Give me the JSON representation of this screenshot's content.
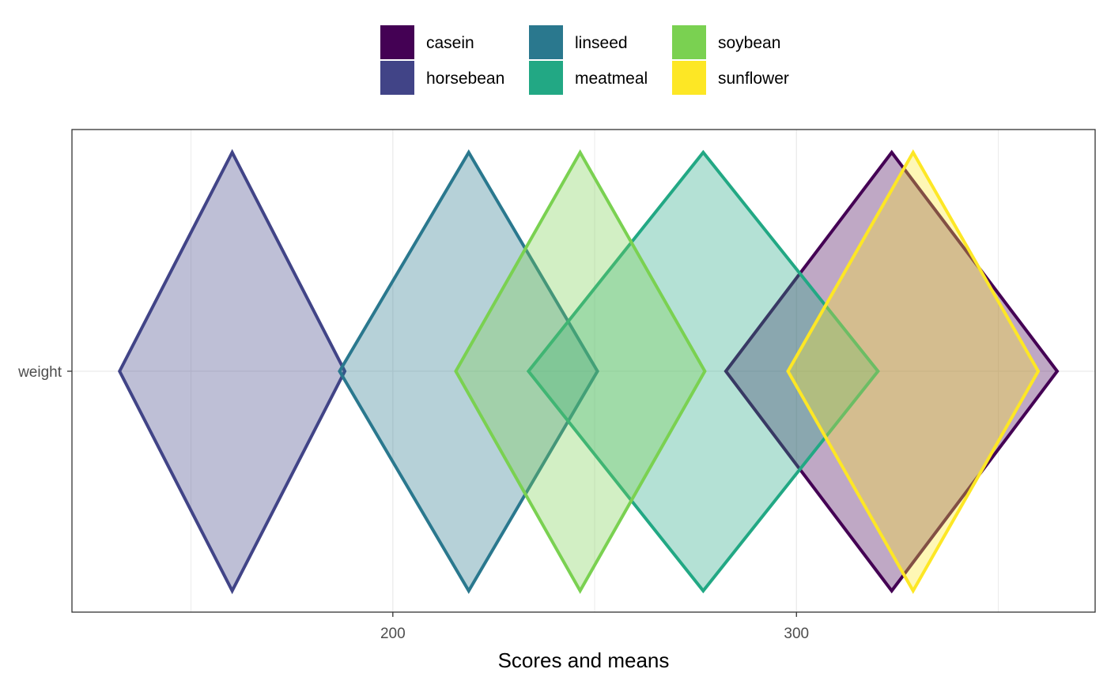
{
  "chart_data": {
    "type": "diamond-interval",
    "title": "",
    "xlabel": "Scores and means",
    "ylabel": "",
    "xlim": [
      120.5,
      374
    ],
    "x_ticks": [
      200,
      300
    ],
    "x_tick_labels": [
      "200",
      "300"
    ],
    "y_categories": [
      "weight"
    ],
    "grid": true,
    "legend_position": "top",
    "series": [
      {
        "name": "casein",
        "color": "#440154",
        "mean": 323.6,
        "lower": 282.5,
        "upper": 364.6
      },
      {
        "name": "horsebean",
        "color": "#414487",
        "mean": 160.2,
        "lower": 132.3,
        "upper": 188.1
      },
      {
        "name": "linseed",
        "color": "#2A788E",
        "mean": 218.8,
        "lower": 186.8,
        "upper": 250.7
      },
      {
        "name": "meatmeal",
        "color": "#22A884",
        "mean": 276.9,
        "lower": 233.6,
        "upper": 320.2
      },
      {
        "name": "soybean",
        "color": "#7AD151",
        "mean": 246.4,
        "lower": 215.6,
        "upper": 277.3
      },
      {
        "name": "sunflower",
        "color": "#FDE725",
        "mean": 328.9,
        "lower": 297.9,
        "upper": 359.9
      }
    ]
  }
}
